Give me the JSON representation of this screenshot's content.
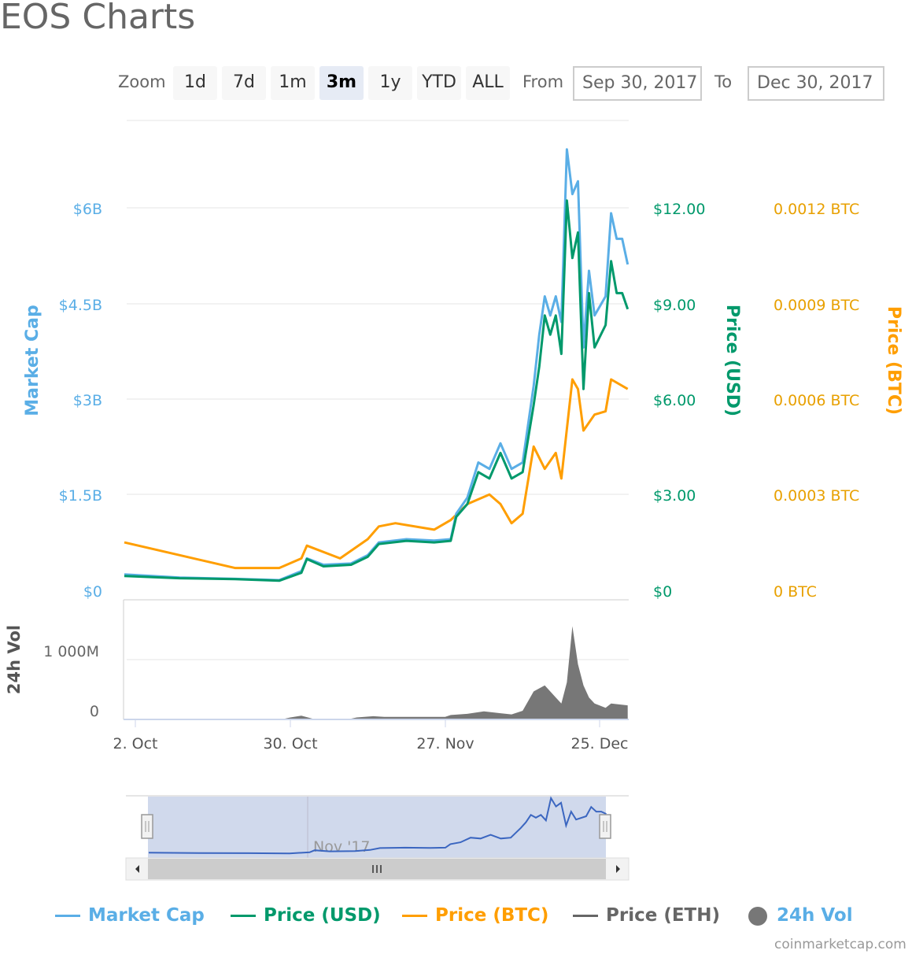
{
  "title": "EOS Charts",
  "zoom": {
    "label": "Zoom",
    "buttons": [
      "1d",
      "7d",
      "1m",
      "3m",
      "1y",
      "YTD",
      "ALL"
    ],
    "selected": "3m"
  },
  "range": {
    "from_label": "From",
    "from": "Sep 30, 2017",
    "to_label": "To",
    "to": "Dec 30, 2017"
  },
  "colors": {
    "market_cap": "#5aaee6",
    "price_usd": "#00996b",
    "price_btc": "#ff9e00",
    "price_eth": "#666666",
    "volume": "#777777",
    "navigator": "#3b66c0"
  },
  "chart_data": [
    {
      "type": "line",
      "title": "",
      "xlabel": "",
      "x_ticks": [
        "2. Oct",
        "30. Oct",
        "27. Nov",
        "25. Dec"
      ],
      "x_range": [
        "2017-09-30",
        "2017-12-30"
      ],
      "axes": {
        "market_cap": {
          "label": "Market Cap",
          "ticks": [
            "$0",
            "$1.5B",
            "$3B",
            "$4.5B",
            "$6B"
          ]
        },
        "price_usd": {
          "label": "Price (USD)",
          "ticks": [
            "$0",
            "$3.00",
            "$6.00",
            "$9.00",
            "$12.00"
          ],
          "ylim": [
            0,
            15
          ]
        },
        "price_btc": {
          "label": "Price (BTC)",
          "ticks": [
            "0 BTC",
            "0.0003 BTC",
            "0.0006 BTC",
            "0.0009 BTC",
            "0.0012 BTC"
          ]
        }
      },
      "grid": true,
      "series": [
        {
          "name": "Market Cap",
          "unit": "billion USD",
          "points": [
            [
              "2017-09-30",
              0.25
            ],
            [
              "2017-10-10",
              0.2
            ],
            [
              "2017-10-20",
              0.18
            ],
            [
              "2017-10-28",
              0.16
            ],
            [
              "2017-11-01",
              0.3
            ],
            [
              "2017-11-02",
              0.5
            ],
            [
              "2017-11-05",
              0.4
            ],
            [
              "2017-11-10",
              0.42
            ],
            [
              "2017-11-13",
              0.55
            ],
            [
              "2017-11-15",
              0.75
            ],
            [
              "2017-11-20",
              0.8
            ],
            [
              "2017-11-25",
              0.78
            ],
            [
              "2017-11-28",
              0.8
            ],
            [
              "2017-11-29",
              1.2
            ],
            [
              "2017-12-01",
              1.45
            ],
            [
              "2017-12-03",
              2.0
            ],
            [
              "2017-12-05",
              1.9
            ],
            [
              "2017-12-07",
              2.3
            ],
            [
              "2017-12-09",
              1.9
            ],
            [
              "2017-12-11",
              2.0
            ],
            [
              "2017-12-13",
              3.2
            ],
            [
              "2017-12-14",
              4.0
            ],
            [
              "2017-12-15",
              4.6
            ],
            [
              "2017-12-16",
              4.3
            ],
            [
              "2017-12-17",
              4.6
            ],
            [
              "2017-12-18",
              4.2
            ],
            [
              "2017-12-19",
              6.9
            ],
            [
              "2017-12-20",
              6.2
            ],
            [
              "2017-12-21",
              6.4
            ],
            [
              "2017-12-22",
              3.8
            ],
            [
              "2017-12-23",
              5.0
            ],
            [
              "2017-12-24",
              4.3
            ],
            [
              "2017-12-26",
              4.6
            ],
            [
              "2017-12-27",
              5.9
            ],
            [
              "2017-12-28",
              5.5
            ],
            [
              "2017-12-29",
              5.5
            ],
            [
              "2017-12-30",
              5.1
            ]
          ]
        },
        {
          "name": "Price (USD)",
          "unit": "USD",
          "points": [
            [
              "2017-09-30",
              0.45
            ],
            [
              "2017-10-10",
              0.38
            ],
            [
              "2017-10-20",
              0.35
            ],
            [
              "2017-10-28",
              0.3
            ],
            [
              "2017-11-01",
              0.55
            ],
            [
              "2017-11-02",
              0.98
            ],
            [
              "2017-11-05",
              0.75
            ],
            [
              "2017-11-10",
              0.8
            ],
            [
              "2017-11-13",
              1.05
            ],
            [
              "2017-11-15",
              1.45
            ],
            [
              "2017-11-20",
              1.55
            ],
            [
              "2017-11-25",
              1.5
            ],
            [
              "2017-11-28",
              1.55
            ],
            [
              "2017-11-29",
              2.3
            ],
            [
              "2017-12-01",
              2.7
            ],
            [
              "2017-12-03",
              3.7
            ],
            [
              "2017-12-05",
              3.5
            ],
            [
              "2017-12-07",
              4.3
            ],
            [
              "2017-12-09",
              3.5
            ],
            [
              "2017-12-11",
              3.7
            ],
            [
              "2017-12-13",
              5.8
            ],
            [
              "2017-12-14",
              7.0
            ],
            [
              "2017-12-15",
              8.6
            ],
            [
              "2017-12-16",
              8.0
            ],
            [
              "2017-12-17",
              8.6
            ],
            [
              "2017-12-18",
              7.4
            ],
            [
              "2017-12-19",
              12.2
            ],
            [
              "2017-12-20",
              10.4
            ],
            [
              "2017-12-21",
              11.2
            ],
            [
              "2017-12-22",
              6.3
            ],
            [
              "2017-12-23",
              9.3
            ],
            [
              "2017-12-24",
              7.6
            ],
            [
              "2017-12-26",
              8.3
            ],
            [
              "2017-12-27",
              10.3
            ],
            [
              "2017-12-28",
              9.3
            ],
            [
              "2017-12-29",
              9.3
            ],
            [
              "2017-12-30",
              8.8
            ]
          ]
        },
        {
          "name": "Price (BTC)",
          "unit": "BTC",
          "points": [
            [
              "2017-09-30",
              0.00015
            ],
            [
              "2017-10-10",
              0.00011
            ],
            [
              "2017-10-20",
              7e-05
            ],
            [
              "2017-10-28",
              7e-05
            ],
            [
              "2017-11-01",
              0.0001
            ],
            [
              "2017-11-02",
              0.00014
            ],
            [
              "2017-11-08",
              0.0001
            ],
            [
              "2017-11-13",
              0.00016
            ],
            [
              "2017-11-15",
              0.0002
            ],
            [
              "2017-11-18",
              0.00021
            ],
            [
              "2017-11-25",
              0.00019
            ],
            [
              "2017-11-28",
              0.00022
            ],
            [
              "2017-12-01",
              0.00027
            ],
            [
              "2017-12-05",
              0.0003
            ],
            [
              "2017-12-07",
              0.00027
            ],
            [
              "2017-12-09",
              0.00021
            ],
            [
              "2017-12-11",
              0.00024
            ],
            [
              "2017-12-13",
              0.00045
            ],
            [
              "2017-12-15",
              0.00038
            ],
            [
              "2017-12-17",
              0.00043
            ],
            [
              "2017-12-18",
              0.00035
            ],
            [
              "2017-12-20",
              0.00066
            ],
            [
              "2017-12-21",
              0.00063
            ],
            [
              "2017-12-22",
              0.0005
            ],
            [
              "2017-12-24",
              0.00055
            ],
            [
              "2017-12-26",
              0.00056
            ],
            [
              "2017-12-27",
              0.00066
            ],
            [
              "2017-12-30",
              0.00063
            ]
          ]
        }
      ]
    },
    {
      "type": "area",
      "axis_label": "24h Vol",
      "y_ticks": [
        "0",
        "1 000M"
      ],
      "unit": "million USD",
      "points": [
        [
          "2017-09-30",
          0
        ],
        [
          "2017-10-29",
          0
        ],
        [
          "2017-10-30",
          20
        ],
        [
          "2017-11-01",
          50
        ],
        [
          "2017-11-03",
          0
        ],
        [
          "2017-11-10",
          0
        ],
        [
          "2017-11-11",
          20
        ],
        [
          "2017-11-14",
          40
        ],
        [
          "2017-11-16",
          30
        ],
        [
          "2017-11-27",
          30
        ],
        [
          "2017-11-28",
          60
        ],
        [
          "2017-12-01",
          80
        ],
        [
          "2017-12-04",
          120
        ],
        [
          "2017-12-07",
          90
        ],
        [
          "2017-12-09",
          70
        ],
        [
          "2017-12-11",
          130
        ],
        [
          "2017-12-13",
          450
        ],
        [
          "2017-12-15",
          550
        ],
        [
          "2017-12-17",
          350
        ],
        [
          "2017-12-18",
          250
        ],
        [
          "2017-12-19",
          600
        ],
        [
          "2017-12-20",
          1530
        ],
        [
          "2017-12-21",
          900
        ],
        [
          "2017-12-22",
          550
        ],
        [
          "2017-12-23",
          350
        ],
        [
          "2017-12-24",
          250
        ],
        [
          "2017-12-26",
          180
        ],
        [
          "2017-12-27",
          250
        ],
        [
          "2017-12-30",
          220
        ]
      ]
    },
    {
      "type": "line",
      "role": "navigator",
      "x_tick": "Nov '17"
    }
  ],
  "legend": [
    "Market Cap",
    "Price (USD)",
    "Price (BTC)",
    "Price (ETH)",
    "24h Vol"
  ],
  "credit": "coinmarketcap.com"
}
